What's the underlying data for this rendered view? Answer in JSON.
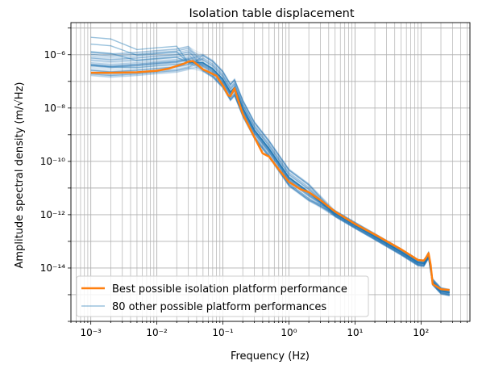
{
  "chart_data": {
    "type": "line",
    "title": "Isolation table displacement",
    "xlabel": "Frequency (Hz)",
    "ylabel": "Amplitude spectral density (m/√Hz)",
    "xscale": "log",
    "yscale": "log",
    "xlim": [
      0.0005,
      550
    ],
    "ylim": [
      1e-16,
      1.6e-05
    ],
    "grid": "major and minor",
    "legend_position": "lower-left",
    "xticks": [
      {
        "value": 0.001,
        "label": "10⁻³"
      },
      {
        "value": 0.01,
        "label": "10⁻²"
      },
      {
        "value": 0.1,
        "label": "10⁻¹"
      },
      {
        "value": 1,
        "label": "10⁰"
      },
      {
        "value": 10,
        "label": "10¹"
      },
      {
        "value": 100,
        "label": "10²"
      }
    ],
    "yticks": [
      {
        "value": 1e-14,
        "label": "10⁻¹⁴"
      },
      {
        "value": 1e-12,
        "label": "10⁻¹²"
      },
      {
        "value": 1e-10,
        "label": "10⁻¹⁰"
      },
      {
        "value": 1e-08,
        "label": "10⁻⁸"
      },
      {
        "value": 1e-06,
        "label": "10⁻⁶"
      }
    ],
    "series": [
      {
        "name": "Best possible isolation platform performance",
        "color": "#ff7f0e",
        "x": [
          0.001,
          0.002,
          0.005,
          0.01,
          0.015,
          0.02,
          0.025,
          0.03,
          0.035,
          0.04,
          0.05,
          0.06,
          0.08,
          0.1,
          0.12,
          0.13,
          0.15,
          0.17,
          0.2,
          0.3,
          0.4,
          0.5,
          0.7,
          1,
          1.5,
          2,
          3,
          5,
          10,
          20,
          50,
          90,
          110,
          120,
          130,
          140,
          150,
          200,
          270
        ],
        "y": [
          2.1e-07,
          2.1e-07,
          2.2e-07,
          2.5e-07,
          3e-07,
          3.8e-07,
          4.5e-07,
          5.5e-07,
          5.8e-07,
          4.5e-07,
          2.8e-07,
          2.3e-07,
          1.6e-07,
          7e-08,
          3e-08,
          2.8e-08,
          5.5e-08,
          2e-08,
          6e-09,
          8e-10,
          2e-10,
          1.5e-10,
          5e-11,
          1.7e-11,
          9e-12,
          7e-12,
          3.5e-12,
          1.3e-12,
          4.5e-13,
          1.8e-13,
          5e-14,
          2e-14,
          1.9e-14,
          2.5e-14,
          3.6e-14,
          1.3e-14,
          2.5e-15,
          1.6e-15,
          1.5e-15
        ]
      },
      {
        "name": "80 other possible platform performances",
        "color": "#1f77b4",
        "x": [
          0.001,
          0.002,
          0.005,
          0.01,
          0.02,
          0.03,
          0.05,
          0.07,
          0.1,
          0.13,
          0.15,
          0.2,
          0.3,
          0.5,
          1,
          2,
          5,
          10,
          20,
          50,
          90,
          110,
          130,
          150,
          200,
          270
        ],
        "y": [
          3e-07,
          2.6e-07,
          3e-07,
          3.5e-07,
          4e-07,
          5e-07,
          5e-07,
          3e-07,
          1.2e-07,
          4e-08,
          6e-08,
          1e-08,
          1.5e-09,
          3e-10,
          2.5e-11,
          7e-12,
          1.1e-12,
          4e-13,
          1.5e-13,
          4e-14,
          1.6e-14,
          1.5e-14,
          3e-14,
          3e-15,
          1.4e-15,
          1.2e-15
        ]
      }
    ]
  }
}
